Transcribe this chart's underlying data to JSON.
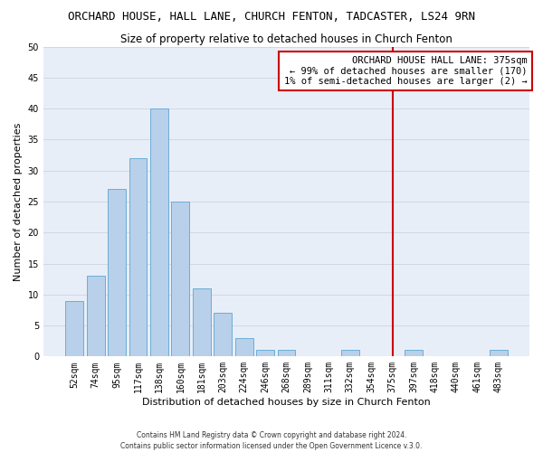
{
  "title": "ORCHARD HOUSE, HALL LANE, CHURCH FENTON, TADCASTER, LS24 9RN",
  "subtitle": "Size of property relative to detached houses in Church Fenton",
  "xlabel": "Distribution of detached houses by size in Church Fenton",
  "ylabel": "Number of detached properties",
  "footer": "Contains HM Land Registry data © Crown copyright and database right 2024.\nContains public sector information licensed under the Open Government Licence v.3.0.",
  "bar_labels": [
    "52sqm",
    "74sqm",
    "95sqm",
    "117sqm",
    "138sqm",
    "160sqm",
    "181sqm",
    "203sqm",
    "224sqm",
    "246sqm",
    "268sqm",
    "289sqm",
    "311sqm",
    "332sqm",
    "354sqm",
    "375sqm",
    "397sqm",
    "418sqm",
    "440sqm",
    "461sqm",
    "483sqm"
  ],
  "bar_heights": [
    9,
    13,
    27,
    32,
    40,
    25,
    11,
    7,
    3,
    1,
    1,
    0,
    0,
    1,
    0,
    0,
    1,
    0,
    0,
    0,
    1
  ],
  "bar_color": "#b8d0ea",
  "bar_edge_color": "#6baed6",
  "reference_line_index": 15,
  "reference_line_color": "#cc0000",
  "annotation_line1": "ORCHARD HOUSE HALL LANE: 375sqm",
  "annotation_line2": "← 99% of detached houses are smaller (170)",
  "annotation_line3": "1% of semi-detached houses are larger (2) →",
  "annotation_box_facecolor": "white",
  "annotation_box_edgecolor": "#cc0000",
  "ylim": [
    0,
    50
  ],
  "yticks": [
    0,
    5,
    10,
    15,
    20,
    25,
    30,
    35,
    40,
    45,
    50
  ],
  "grid_color": "#d0d8e4",
  "background_color": "#e8eef8",
  "title_fontsize": 9,
  "subtitle_fontsize": 8.5,
  "axis_label_fontsize": 8,
  "tick_fontsize": 7,
  "annotation_fontsize": 7.5
}
